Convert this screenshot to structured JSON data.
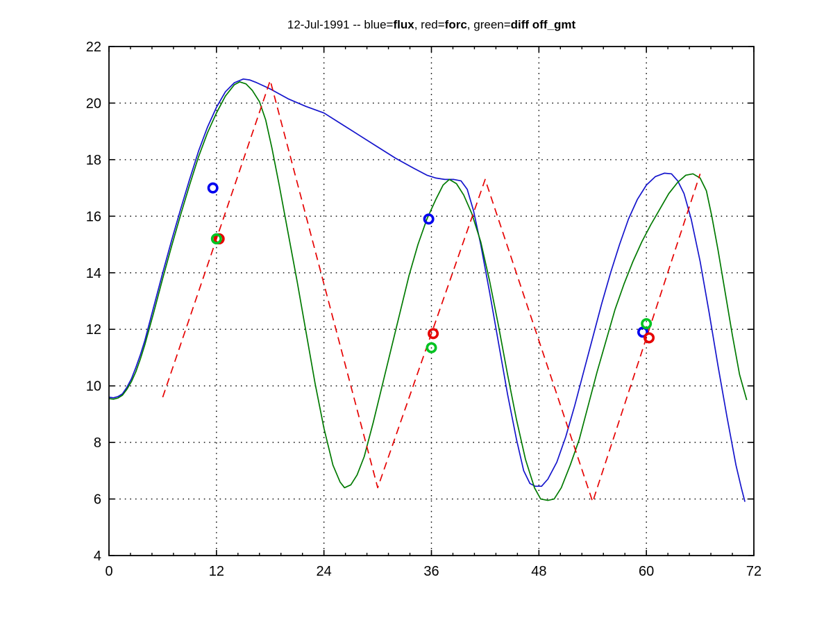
{
  "figure": {
    "background": "#ffffff",
    "title_full": "12-Jul-1991 -- blue=flux, red=forc, green=diff off_gmt",
    "title_segments": [
      {
        "text": "12-Jul-1991 -- blue=",
        "bold": false
      },
      {
        "text": "flux",
        "bold": true
      },
      {
        "text": ", red=",
        "bold": false
      },
      {
        "text": "forc",
        "bold": true
      },
      {
        "text": ", green=",
        "bold": false
      },
      {
        "text": "diff off_gmt",
        "bold": true
      }
    ]
  },
  "chart_data": {
    "type": "line",
    "title": "12-Jul-1991 -- blue=flux, red=forc, green=diff off_gmt",
    "xlabel": "",
    "ylabel": "",
    "xlim": [
      0,
      72
    ],
    "ylim": [
      4,
      22
    ],
    "xticks": [
      0,
      12,
      24,
      36,
      48,
      60,
      72
    ],
    "yticks": [
      4,
      6,
      8,
      10,
      12,
      14,
      16,
      18,
      20,
      22
    ],
    "x_minor_step": 2.4,
    "grid": "dotted-black-at-major-ticks",
    "legend_position": "in-title",
    "axis_color": "#000000",
    "series": [
      {
        "name": "flux",
        "color": "#1414cc",
        "style": "solid",
        "points": [
          [
            0,
            9.6
          ],
          [
            0.5,
            9.58
          ],
          [
            1,
            9.62
          ],
          [
            1.5,
            9.72
          ],
          [
            2,
            9.95
          ],
          [
            2.5,
            10.25
          ],
          [
            3,
            10.65
          ],
          [
            3.5,
            11.1
          ],
          [
            4,
            11.6
          ],
          [
            5,
            12.8
          ],
          [
            6,
            14.0
          ],
          [
            7,
            15.15
          ],
          [
            8,
            16.25
          ],
          [
            9,
            17.3
          ],
          [
            10,
            18.3
          ],
          [
            11,
            19.15
          ],
          [
            12,
            19.85
          ],
          [
            13,
            20.4
          ],
          [
            14,
            20.72
          ],
          [
            15,
            20.85
          ],
          [
            15.7,
            20.82
          ],
          [
            16.5,
            20.72
          ],
          [
            18,
            20.5
          ],
          [
            20,
            20.15
          ],
          [
            22,
            19.88
          ],
          [
            24,
            19.65
          ],
          [
            26,
            19.25
          ],
          [
            28,
            18.85
          ],
          [
            30,
            18.45
          ],
          [
            32,
            18.05
          ],
          [
            34,
            17.7
          ],
          [
            35.5,
            17.45
          ],
          [
            36.5,
            17.35
          ],
          [
            37.5,
            17.3
          ],
          [
            38.5,
            17.3
          ],
          [
            39.3,
            17.25
          ],
          [
            40,
            16.95
          ],
          [
            40.7,
            16.2
          ],
          [
            41.5,
            15.0
          ],
          [
            42.5,
            13.3
          ],
          [
            43.5,
            11.5
          ],
          [
            44.5,
            9.7
          ],
          [
            45.5,
            8.1
          ],
          [
            46.3,
            7.0
          ],
          [
            47,
            6.55
          ],
          [
            47.6,
            6.45
          ],
          [
            48.3,
            6.45
          ],
          [
            49,
            6.7
          ],
          [
            50,
            7.3
          ],
          [
            51,
            8.2
          ],
          [
            52,
            9.3
          ],
          [
            53,
            10.5
          ],
          [
            54,
            11.7
          ],
          [
            55,
            12.9
          ],
          [
            56,
            14.0
          ],
          [
            57,
            15.0
          ],
          [
            58,
            15.9
          ],
          [
            59,
            16.6
          ],
          [
            60,
            17.1
          ],
          [
            61,
            17.4
          ],
          [
            62,
            17.52
          ],
          [
            62.8,
            17.5
          ],
          [
            63.5,
            17.25
          ],
          [
            64.2,
            16.8
          ],
          [
            65,
            15.9
          ],
          [
            66,
            14.4
          ],
          [
            67,
            12.6
          ],
          [
            68,
            10.7
          ],
          [
            69,
            8.9
          ],
          [
            70,
            7.2
          ],
          [
            70.6,
            6.4
          ],
          [
            71,
            5.9
          ]
        ]
      },
      {
        "name": "diff",
        "color": "#007a00",
        "style": "solid",
        "points": [
          [
            0,
            9.55
          ],
          [
            0.5,
            9.53
          ],
          [
            1,
            9.57
          ],
          [
            1.5,
            9.67
          ],
          [
            2,
            9.88
          ],
          [
            2.5,
            10.15
          ],
          [
            3,
            10.5
          ],
          [
            3.5,
            10.95
          ],
          [
            4,
            11.45
          ],
          [
            5,
            12.6
          ],
          [
            6,
            13.8
          ],
          [
            7,
            14.95
          ],
          [
            8,
            16.05
          ],
          [
            9,
            17.1
          ],
          [
            10,
            18.1
          ],
          [
            11,
            18.95
          ],
          [
            12,
            19.65
          ],
          [
            13,
            20.25
          ],
          [
            14,
            20.65
          ],
          [
            14.6,
            20.75
          ],
          [
            15.3,
            20.68
          ],
          [
            16,
            20.45
          ],
          [
            16.8,
            20.05
          ],
          [
            17.5,
            19.4
          ],
          [
            18.2,
            18.4
          ],
          [
            19,
            17.1
          ],
          [
            20,
            15.4
          ],
          [
            21,
            13.7
          ],
          [
            22,
            11.9
          ],
          [
            23,
            10.1
          ],
          [
            24,
            8.5
          ],
          [
            25,
            7.2
          ],
          [
            25.8,
            6.6
          ],
          [
            26.3,
            6.4
          ],
          [
            27,
            6.5
          ],
          [
            27.7,
            6.85
          ],
          [
            28.5,
            7.5
          ],
          [
            29.5,
            8.7
          ],
          [
            30.5,
            10.0
          ],
          [
            31.5,
            11.3
          ],
          [
            32.5,
            12.6
          ],
          [
            33.5,
            13.9
          ],
          [
            34.5,
            15.0
          ],
          [
            35.5,
            15.9
          ],
          [
            36.5,
            16.6
          ],
          [
            37.3,
            17.1
          ],
          [
            38,
            17.3
          ],
          [
            38.8,
            17.15
          ],
          [
            39.6,
            16.75
          ],
          [
            40.5,
            16.1
          ],
          [
            41.5,
            15.1
          ],
          [
            42.5,
            13.7
          ],
          [
            43.5,
            12.1
          ],
          [
            44.5,
            10.4
          ],
          [
            45.5,
            8.8
          ],
          [
            46.5,
            7.4
          ],
          [
            47.5,
            6.4
          ],
          [
            48.2,
            6.0
          ],
          [
            49,
            5.95
          ],
          [
            49.7,
            6.0
          ],
          [
            50.5,
            6.4
          ],
          [
            51.5,
            7.2
          ],
          [
            52.5,
            8.1
          ],
          [
            53.5,
            9.3
          ],
          [
            54.5,
            10.5
          ],
          [
            55.5,
            11.6
          ],
          [
            56.5,
            12.7
          ],
          [
            57.5,
            13.6
          ],
          [
            58.5,
            14.4
          ],
          [
            59.5,
            15.1
          ],
          [
            60.5,
            15.7
          ],
          [
            61.5,
            16.25
          ],
          [
            62.5,
            16.8
          ],
          [
            63.5,
            17.2
          ],
          [
            64.4,
            17.45
          ],
          [
            65.2,
            17.5
          ],
          [
            66,
            17.35
          ],
          [
            66.7,
            16.9
          ],
          [
            67.3,
            16.0
          ],
          [
            68,
            14.8
          ],
          [
            68.8,
            13.3
          ],
          [
            69.6,
            11.8
          ],
          [
            70.4,
            10.4
          ],
          [
            71.2,
            9.5
          ]
        ]
      },
      {
        "name": "forc",
        "color": "#e60000",
        "style": "dashed",
        "points": [
          [
            6,
            9.6
          ],
          [
            18,
            20.8
          ],
          [
            30,
            6.4
          ],
          [
            42,
            17.3
          ],
          [
            54,
            5.9
          ],
          [
            66,
            17.5
          ]
        ]
      }
    ],
    "markers": [
      {
        "series": "flux",
        "color": "#0000ee",
        "shape": "circle",
        "points": [
          [
            11.6,
            17.0
          ],
          [
            35.7,
            15.9
          ],
          [
            59.6,
            11.9
          ]
        ]
      },
      {
        "series": "forc",
        "color": "#e60000",
        "shape": "circle",
        "points": [
          [
            12.3,
            15.2
          ],
          [
            36.2,
            11.85
          ],
          [
            60.3,
            11.7
          ]
        ]
      },
      {
        "series": "diff",
        "color": "#00c322",
        "shape": "circle",
        "points": [
          [
            12,
            15.2
          ],
          [
            36,
            11.35
          ],
          [
            60,
            12.2
          ]
        ]
      }
    ]
  }
}
